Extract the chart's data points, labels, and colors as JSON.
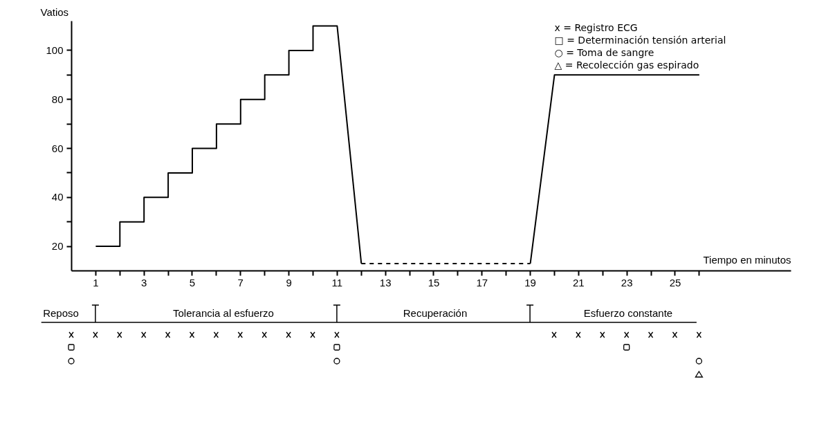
{
  "chart_data": [
    {
      "type": "line",
      "ylabel": "Vatios",
      "xlabel": "Tiempo en minutos",
      "xlim": [
        0,
        29.8
      ],
      "ylim": [
        10,
        112
      ],
      "xticks": [
        1,
        {
          "value": 2,
          "label": null
        },
        3,
        {
          "value": 4,
          "label": null
        },
        5,
        {
          "value": 6,
          "label": null
        },
        7,
        {
          "value": 8,
          "label": null
        },
        9,
        {
          "value": 10,
          "label": null
        },
        11,
        {
          "value": 12,
          "label": null
        },
        13,
        {
          "value": 14,
          "label": null
        },
        15,
        {
          "value": 16,
          "label": null
        },
        17,
        {
          "value": 18,
          "label": null
        },
        19,
        {
          "value": 20,
          "label": null
        },
        21,
        {
          "value": 22,
          "label": null
        },
        23,
        {
          "value": 24,
          "label": null
        },
        25,
        {
          "value": 26,
          "label": null
        }
      ],
      "yticks": [
        20,
        {
          "value": 30,
          "label": null
        },
        40,
        {
          "value": 50,
          "label": null
        },
        60,
        {
          "value": 70,
          "label": null
        },
        80,
        {
          "value": 90,
          "label": null
        },
        100
      ],
      "grid": false,
      "marker": "none",
      "annotations": [
        "x = Registro ECG",
        "□ = Determinación tensión arterial",
        "○ = Toma de sangre",
        "△ = Recolección gas espirado"
      ],
      "series": [
        {
          "color": "#000000",
          "line_style": "solid",
          "x": [
            1,
            2,
            2,
            3,
            3,
            4,
            4,
            5,
            5,
            6,
            6,
            7,
            7,
            8,
            8,
            9,
            9,
            10,
            10,
            11,
            12
          ],
          "values": [
            20,
            20,
            30,
            30,
            40,
            40,
            50,
            50,
            60,
            60,
            70,
            70,
            80,
            80,
            90,
            90,
            100,
            100,
            110,
            110,
            13
          ]
        },
        {
          "color": "#000000",
          "line_style": "dashed",
          "x": [
            12,
            19
          ],
          "values": [
            13,
            13
          ]
        },
        {
          "color": "#000000",
          "line_style": "solid",
          "x": [
            19,
            20,
            26
          ],
          "values": [
            13,
            90,
            90
          ]
        }
      ]
    },
    {
      "type": "other",
      "annotations": [
        "Reposo",
        "Tolerancia al esfuerzo",
        "Recuperación",
        "Esfuerzo constante"
      ]
    }
  ]
}
